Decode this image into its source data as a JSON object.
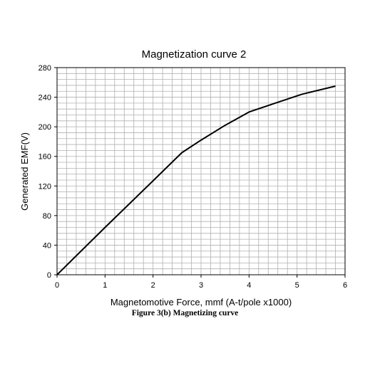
{
  "chart_data": {
    "type": "line",
    "title": "Magnetization curve 2",
    "xlabel": "Magnetomotive Force, mmf (A-t/pole x1000)",
    "ylabel": "Generated EMF(V)",
    "xlim": [
      0,
      6
    ],
    "ylim": [
      0,
      280
    ],
    "x_ticks": [
      0,
      1,
      2,
      3,
      4,
      5,
      6
    ],
    "y_ticks": [
      0,
      40,
      80,
      120,
      160,
      200,
      240,
      280
    ],
    "x_minor_step": 0.2,
    "y_minor_step": 8,
    "grid": true,
    "legend": false,
    "line_color": "#000000",
    "grid_color": "#b0b0b0",
    "series": [
      {
        "x": [
          0,
          1,
          2,
          2.6,
          3,
          3.5,
          4,
          4.5,
          5.1,
          5.8
        ],
        "y": [
          0,
          64,
          127,
          165,
          182,
          202,
          220,
          231,
          244,
          255
        ]
      }
    ]
  },
  "caption": "Figure 3(b) Magnetizing curve"
}
